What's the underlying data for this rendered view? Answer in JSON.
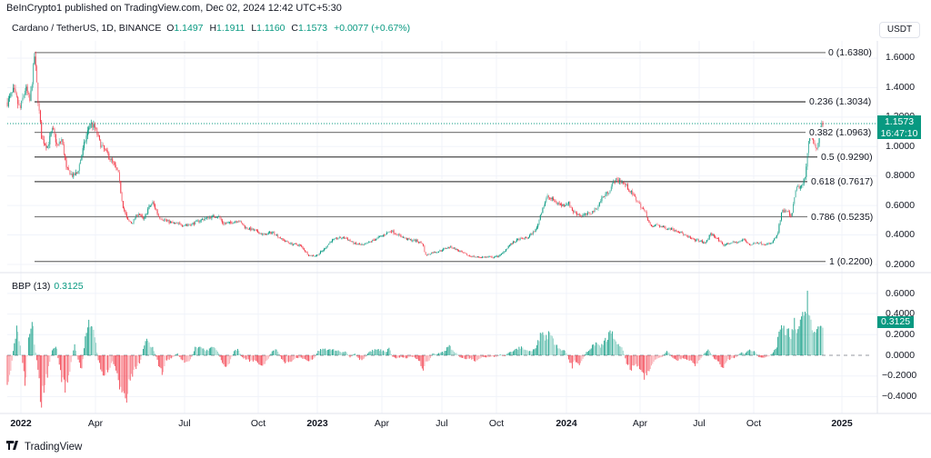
{
  "header": {
    "publish_line": "BeInCrypto1 published on TradingView.com, Dec 02, 2024 12:42 UTC+5:30"
  },
  "legend": {
    "symbol": "Cardano / TetherUS, 1D, BINANCE",
    "open_label": "O",
    "open": "1.1497",
    "high_label": "H",
    "high": "1.1911",
    "low_label": "L",
    "low": "1.1160",
    "close_label": "C",
    "close": "1.1573",
    "change": "+0.0077 (+0.67%)"
  },
  "price_axis": {
    "currency_button": "USDT",
    "ticks": [
      "1.6000",
      "1.4000",
      "1.2000",
      "1.0000",
      "0.8000",
      "0.6000",
      "0.4000",
      "0.2000"
    ],
    "last_price": "1.1573",
    "countdown": "16:47:10"
  },
  "bbp_panel": {
    "title": "BBP (13)",
    "value": "0.3125",
    "ticks": [
      "0.6000",
      "0.4000",
      "0.2000",
      "0.0000",
      "−0.2000",
      "−0.4000"
    ]
  },
  "time_axis": {
    "ticks": [
      {
        "label": "2022",
        "year": true
      },
      {
        "label": "Apr",
        "year": false
      },
      {
        "label": "Jul",
        "year": false
      },
      {
        "label": "Oct",
        "year": false
      },
      {
        "label": "2023",
        "year": true
      },
      {
        "label": "Apr",
        "year": false
      },
      {
        "label": "Jul",
        "year": false
      },
      {
        "label": "Oct",
        "year": false
      },
      {
        "label": "2024",
        "year": true
      },
      {
        "label": "Apr",
        "year": false
      },
      {
        "label": "Jul",
        "year": false
      },
      {
        "label": "Oct",
        "year": false
      },
      {
        "label": "2025",
        "year": true
      }
    ]
  },
  "fib_levels": [
    {
      "label": "0 (1.6380)"
    },
    {
      "label": "0.236 (1.3034)"
    },
    {
      "label": "0.382 (1.0963)"
    },
    {
      "label": "0.5 (0.9290)"
    },
    {
      "label": "0.618 (0.7617)"
    },
    {
      "label": "0.786 (0.5235)"
    },
    {
      "label": "1 (0.2200)"
    }
  ],
  "footer": {
    "brand": "TradingView",
    "brand_mark": "TV"
  },
  "colors": {
    "up": "#089981",
    "down": "#f23645",
    "grid": "#f0f3fa",
    "fib_line": "#4a4a4a"
  },
  "chart_data": [
    {
      "type": "candlestick",
      "title": "Cardano / TetherUS, 1D, BINANCE",
      "ylabel": "USDT",
      "ylim": [
        0.15,
        1.72
      ],
      "yticks": [
        0.2,
        0.4,
        0.6,
        0.8,
        1.0,
        1.2,
        1.4,
        1.6
      ],
      "xticks": [
        "2022",
        "Apr",
        "Jul",
        "Oct",
        "2023",
        "Apr",
        "Jul",
        "Oct",
        "2024",
        "Apr",
        "Jul",
        "Oct",
        "2025"
      ],
      "ohlc_last": {
        "open": 1.1497,
        "high": 1.1911,
        "low": 1.116,
        "close": 1.1573,
        "change": 0.0077,
        "change_pct": 0.67
      },
      "fibonacci_retracement": [
        {
          "ratio": 0,
          "price": 1.638
        },
        {
          "ratio": 0.236,
          "price": 1.3034
        },
        {
          "ratio": 0.382,
          "price": 1.0963
        },
        {
          "ratio": 0.5,
          "price": 0.929
        },
        {
          "ratio": 0.618,
          "price": 0.7617
        },
        {
          "ratio": 0.786,
          "price": 0.5235
        },
        {
          "ratio": 1,
          "price": 0.22
        }
      ],
      "approx_close_path": {
        "x": [
          "2022-01",
          "2022-01-mid",
          "2022-02",
          "2022-03",
          "2022-04",
          "2022-05",
          "2022-06",
          "2022-08",
          "2022-10",
          "2022-12",
          "2023-02",
          "2023-04",
          "2023-06",
          "2023-07",
          "2023-10",
          "2023-12",
          "2024-01",
          "2024-03",
          "2024-04",
          "2024-06",
          "2024-08",
          "2024-10",
          "2024-11",
          "2024-12"
        ],
        "y": [
          1.3,
          1.62,
          1.05,
          0.85,
          1.18,
          0.8,
          0.48,
          0.5,
          0.44,
          0.26,
          0.4,
          0.42,
          0.27,
          0.31,
          0.25,
          0.62,
          0.55,
          0.75,
          0.46,
          0.4,
          0.34,
          0.35,
          0.75,
          1.1573
        ]
      },
      "last_price": 1.1573,
      "countdown": "16:47:10"
    },
    {
      "type": "bar",
      "title": "BBP (13)",
      "current_value": 0.3125,
      "ylim": [
        -0.5,
        0.7
      ],
      "yticks": [
        -0.4,
        -0.2,
        0.0,
        0.2,
        0.4,
        0.6
      ],
      "notable_values": [
        {
          "x": "2022-01",
          "value": 0.3
        },
        {
          "x": "2022-01-low",
          "value": -0.48
        },
        {
          "x": "2022-04",
          "value": 0.38
        },
        {
          "x": "2022-05",
          "value": -0.42
        },
        {
          "x": "2023-06",
          "value": -0.16
        },
        {
          "x": "2023-12",
          "value": 0.28
        },
        {
          "x": "2024-04",
          "value": -0.22
        },
        {
          "x": "2024-11",
          "value": 0.62
        },
        {
          "x": "2024-12",
          "value": 0.3125
        }
      ]
    }
  ]
}
